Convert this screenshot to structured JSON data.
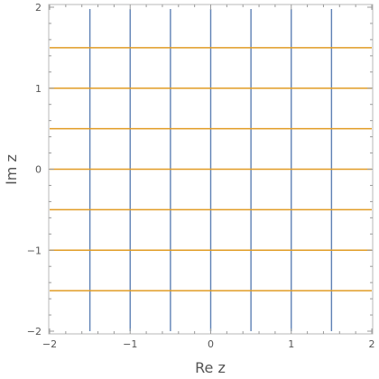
{
  "chart_data": {
    "type": "line",
    "xlabel": "Re z",
    "ylabel": "Im z",
    "xlim": [
      -2,
      2
    ],
    "ylim": [
      -2,
      2
    ],
    "x_ticks": [
      -2,
      -1,
      0,
      1,
      2
    ],
    "y_ticks": [
      -2,
      -1,
      0,
      1,
      2
    ],
    "grid": false,
    "series": [
      {
        "color": "#5e81b5",
        "orientation": "vertical",
        "values": [
          -1.5,
          -1,
          -0.5,
          0,
          0.5,
          1,
          1.5
        ],
        "span": [
          -2,
          2
        ]
      },
      {
        "color": "#e19c24",
        "orientation": "horizontal",
        "values": [
          -1.5,
          -1,
          -0.5,
          0,
          0.5,
          1,
          1.5
        ],
        "span": [
          -2,
          2
        ]
      }
    ]
  }
}
